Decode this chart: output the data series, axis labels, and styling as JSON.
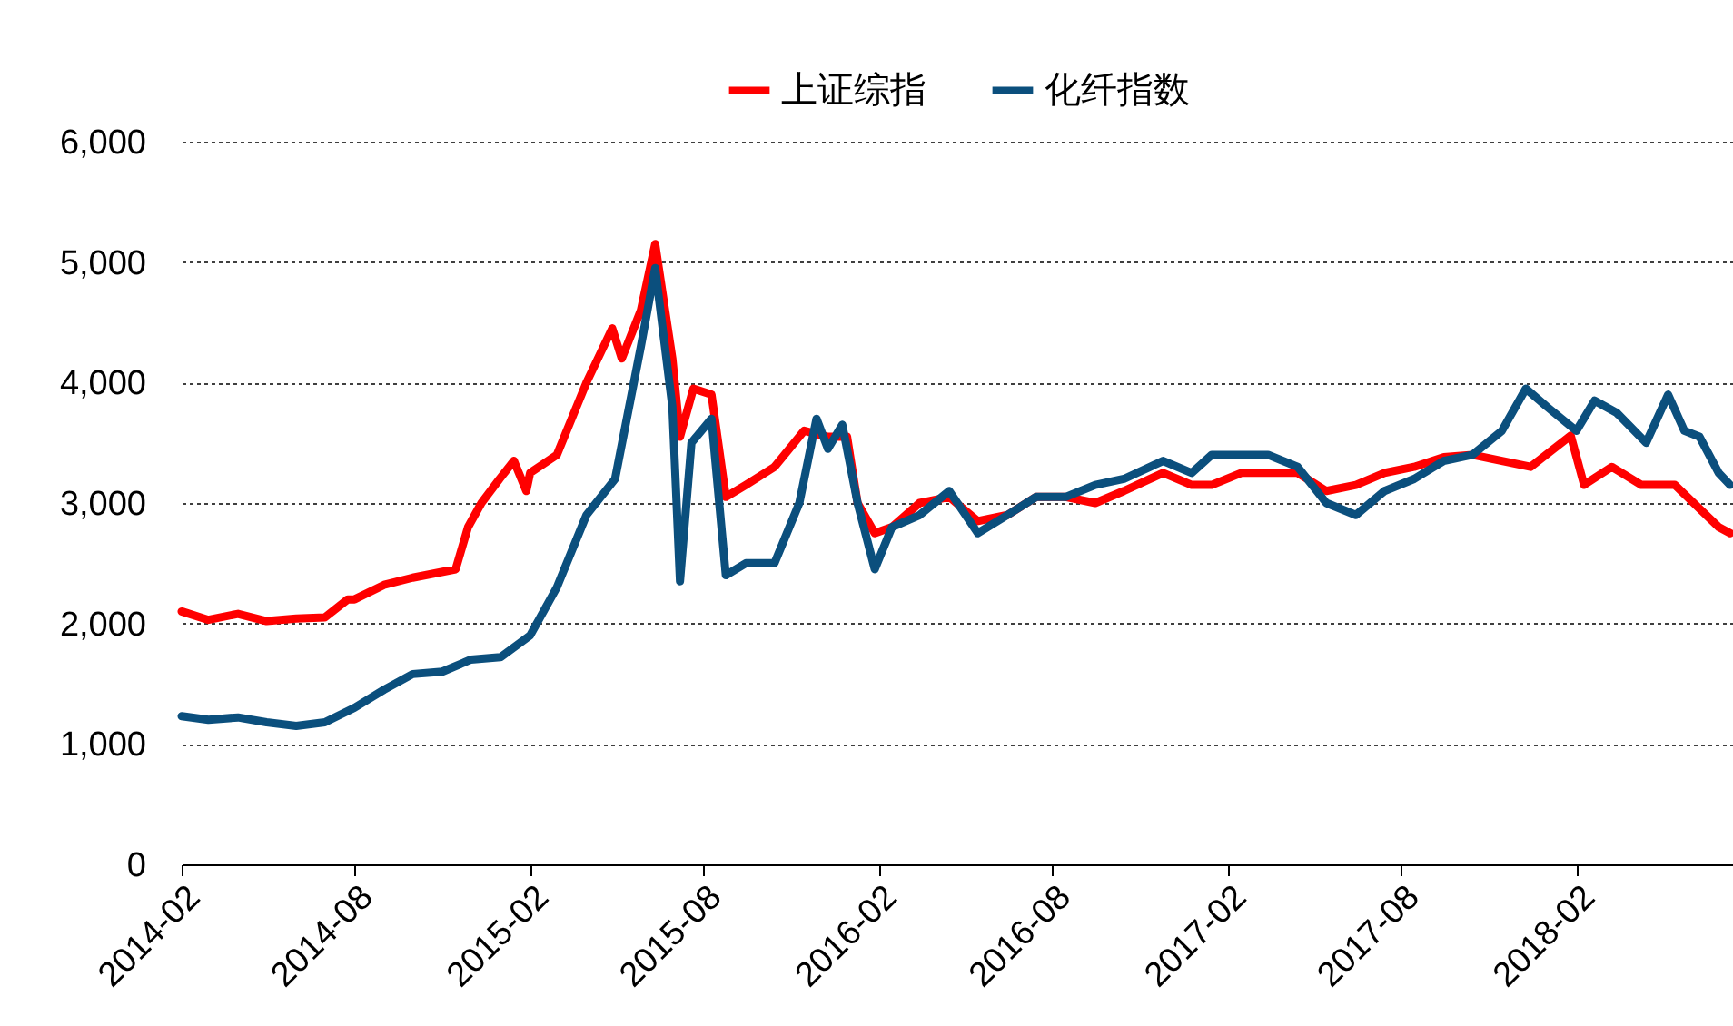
{
  "chart_data": {
    "type": "line",
    "legend": "top",
    "grid": "y",
    "line_style": "solid",
    "marker": "none",
    "xlim": [
      "2014-02-01",
      "2018-07-15"
    ],
    "xticks": [
      "2014-02",
      "2014-08",
      "2015-02",
      "2015-08",
      "2016-02",
      "2016-08",
      "2017-02",
      "2017-08",
      "2018-02"
    ],
    "ylim": [
      0,
      6000
    ],
    "yticks": [
      0,
      {
        "value": 1000,
        "label": "1,000"
      },
      {
        "value": 2000,
        "label": "2,000"
      },
      {
        "value": 3000,
        "label": "3,000"
      },
      {
        "value": 4000,
        "label": "4,000"
      },
      {
        "value": 5000,
        "label": "5,000"
      },
      {
        "value": 6000,
        "label": "6,000"
      }
    ],
    "series": [
      {
        "name": "上证综指",
        "color": "#ff0000",
        "x": [
          "2014-02-01",
          "2014-03-01",
          "2014-04-01",
          "2014-05-01",
          "2014-06-01",
          "2014-07-01",
          "2014-07-25",
          "2014-08-01",
          "2014-09-01",
          "2014-10-01",
          "2014-11-15",
          "2014-11-28",
          "2014-12-12",
          "2014-12-31",
          "2015-01-15",
          "2015-01-28",
          "2015-02-01",
          "2015-03-01",
          "2015-04-01",
          "2015-04-28",
          "2015-05-08",
          "2015-05-28",
          "2015-06-12",
          "2015-06-30",
          "2015-07-08",
          "2015-07-22",
          "2015-08-10",
          "2015-08-25",
          "2015-09-15",
          "2015-10-15",
          "2015-11-15",
          "2015-12-10",
          "2015-12-30",
          "2016-01-10",
          "2016-01-28",
          "2016-02-15",
          "2016-03-15",
          "2016-04-15",
          "2016-05-15",
          "2016-06-15",
          "2016-07-15",
          "2016-08-15",
          "2016-09-15",
          "2016-10-15",
          "2016-11-25",
          "2016-12-25",
          "2017-01-15",
          "2017-02-15",
          "2017-03-15",
          "2017-04-15",
          "2017-05-15",
          "2017-06-15",
          "2017-07-15",
          "2017-08-15",
          "2017-09-15",
          "2017-10-15",
          "2017-11-15",
          "2017-12-15",
          "2018-01-26",
          "2018-02-09",
          "2018-03-10",
          "2018-04-10",
          "2018-05-15",
          "2018-06-30",
          "2018-07-12"
        ],
        "values": [
          2100,
          2030,
          2080,
          2020,
          2040,
          2050,
          2200,
          2200,
          2320,
          2380,
          2450,
          2800,
          3000,
          3200,
          3350,
          3100,
          3250,
          3400,
          4000,
          4450,
          4200,
          4600,
          5150,
          4200,
          3550,
          3950,
          3900,
          3050,
          3150,
          3300,
          3600,
          3550,
          3550,
          3000,
          2750,
          2800,
          3000,
          3050,
          2850,
          2900,
          3050,
          3050,
          3000,
          3100,
          3250,
          3150,
          3150,
          3250,
          3250,
          3250,
          3100,
          3150,
          3250,
          3300,
          3380,
          3400,
          3350,
          3300,
          3560,
          3150,
          3300,
          3150,
          3150,
          2800,
          2750
        ]
      },
      {
        "name": "化纤指数",
        "color": "#0b4f7d",
        "x": [
          "2014-02-01",
          "2014-03-01",
          "2014-04-01",
          "2014-05-01",
          "2014-06-01",
          "2014-07-01",
          "2014-08-01",
          "2014-09-01",
          "2014-10-01",
          "2014-11-01",
          "2014-12-01",
          "2015-01-01",
          "2015-02-01",
          "2015-03-01",
          "2015-04-01",
          "2015-05-01",
          "2015-05-28",
          "2015-06-12",
          "2015-06-30",
          "2015-07-08",
          "2015-07-20",
          "2015-08-10",
          "2015-08-25",
          "2015-09-15",
          "2015-10-15",
          "2015-11-10",
          "2015-11-28",
          "2015-12-10",
          "2015-12-25",
          "2016-01-10",
          "2016-01-28",
          "2016-02-15",
          "2016-03-15",
          "2016-04-15",
          "2016-05-15",
          "2016-06-15",
          "2016-07-15",
          "2016-08-15",
          "2016-09-15",
          "2016-10-15",
          "2016-11-25",
          "2016-12-25",
          "2017-01-15",
          "2017-02-15",
          "2017-03-15",
          "2017-04-15",
          "2017-05-15",
          "2017-06-15",
          "2017-07-15",
          "2017-08-15",
          "2017-09-15",
          "2017-10-15",
          "2017-11-15",
          "2017-12-10",
          "2018-01-01",
          "2018-02-01",
          "2018-02-20",
          "2018-03-15",
          "2018-04-15",
          "2018-05-08",
          "2018-05-25",
          "2018-06-10",
          "2018-06-30",
          "2018-07-12"
        ],
        "values": [
          1230,
          1200,
          1220,
          1180,
          1150,
          1180,
          1300,
          1450,
          1580,
          1600,
          1700,
          1720,
          1900,
          2300,
          2900,
          3200,
          4300,
          4950,
          3800,
          2350,
          3500,
          3700,
          2400,
          2500,
          2500,
          3000,
          3700,
          3450,
          3650,
          3000,
          2450,
          2800,
          2900,
          3100,
          2750,
          2900,
          3050,
          3050,
          3150,
          3200,
          3350,
          3250,
          3400,
          3400,
          3400,
          3300,
          3000,
          2900,
          3100,
          3200,
          3350,
          3400,
          3600,
          3950,
          3800,
          3600,
          3850,
          3750,
          3500,
          3900,
          3600,
          3550,
          3250,
          3150
        ]
      }
    ]
  }
}
